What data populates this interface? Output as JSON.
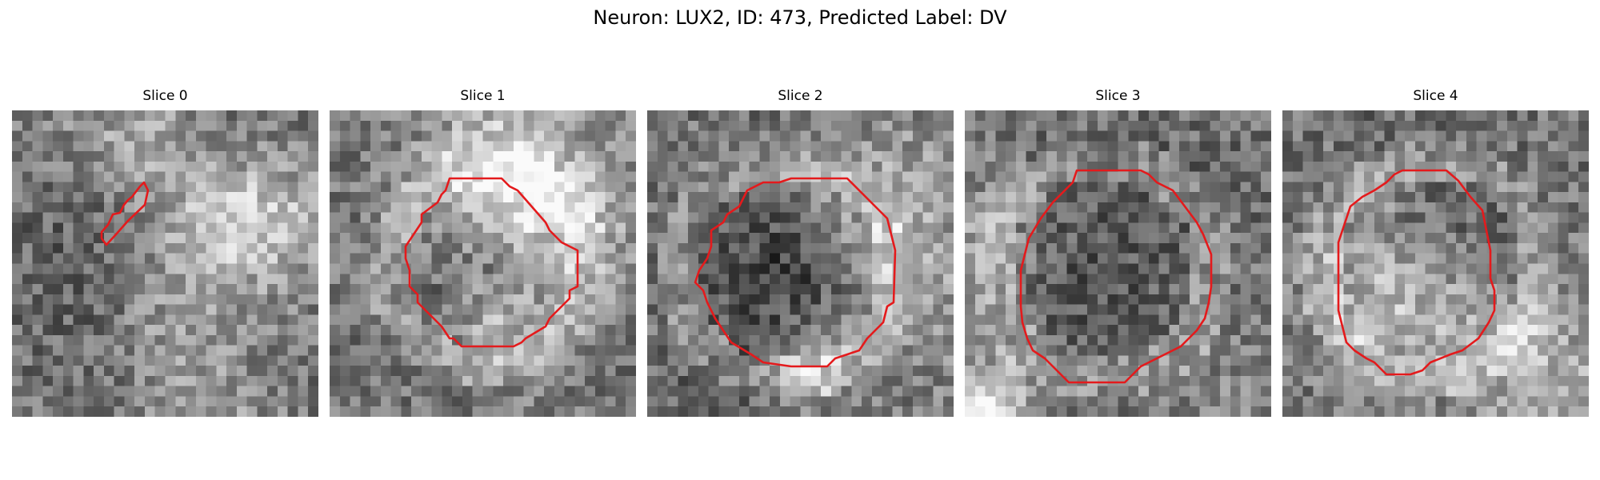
{
  "figure": {
    "title": "Neuron: LUX2, ID: 473, Predicted Label: DV",
    "contour_color": "#e41a1c",
    "colormap": "gray"
  },
  "slices": [
    {
      "title": "Slice 0"
    },
    {
      "title": "Slice 1"
    },
    {
      "title": "Slice 2"
    },
    {
      "title": "Slice 3"
    },
    {
      "title": "Slice 4"
    }
  ]
}
